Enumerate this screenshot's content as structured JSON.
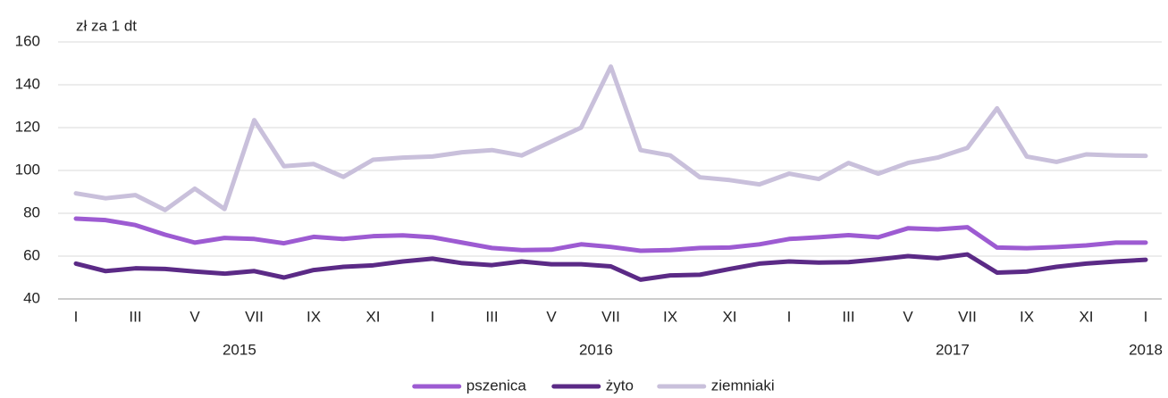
{
  "chart_data": {
    "type": "line",
    "y_label": "zł za 1 dt",
    "categories": [
      "I",
      null,
      "III",
      null,
      "V",
      null,
      "VII",
      null,
      "IX",
      null,
      "XI",
      null,
      "I",
      null,
      "III",
      null,
      "V",
      null,
      "VII",
      null,
      "IX",
      null,
      "XI",
      null,
      "I",
      null,
      "III",
      null,
      "V",
      null,
      "VII",
      null,
      "IX",
      null,
      "XI",
      null,
      "I"
    ],
    "years": [
      "2015",
      "2016",
      "2017",
      "2018"
    ],
    "series": [
      {
        "name": "pszenica",
        "color": "#9d5bd2",
        "values": [
          77.5,
          76.8,
          74.5,
          70,
          66.3,
          68.5,
          68,
          66,
          69,
          68,
          69.3,
          69.7,
          68.8,
          66.3,
          63.8,
          62.8,
          63,
          65.5,
          64.3,
          62.5,
          62.8,
          63.8,
          64,
          65.5,
          68,
          68.8,
          69.8,
          68.8,
          73,
          72.5,
          73.5,
          64,
          63.7,
          64.2,
          65,
          66.3,
          66.3
        ]
      },
      {
        "name": "żyto",
        "color": "#5b2a86",
        "values": [
          56.5,
          53,
          54.3,
          54,
          52.8,
          51.8,
          53,
          50,
          53.5,
          55,
          55.7,
          57.5,
          58.8,
          56.7,
          55.8,
          57.5,
          56.2,
          56.2,
          55.2,
          49,
          51,
          51.3,
          54,
          56.5,
          57.5,
          57,
          57.2,
          58.5,
          60,
          59,
          60.8,
          52.3,
          52.8,
          55,
          56.5,
          57.5,
          58.3
        ]
      },
      {
        "name": "ziemniaki",
        "color": "#c9c0db",
        "values": [
          89.3,
          87,
          88.5,
          81.5,
          91.5,
          82,
          123.5,
          102,
          103,
          97,
          105,
          106,
          106.5,
          108.5,
          109.5,
          107,
          113.5,
          120,
          148.5,
          109.5,
          107,
          96.8,
          95.5,
          93.5,
          98.5,
          96,
          103.5,
          98.5,
          103.5,
          106,
          110.5,
          129,
          106.5,
          104,
          107.5,
          107,
          106.8
        ]
      }
    ],
    "ylim": [
      40,
      160
    ],
    "yticks": [
      40,
      60,
      80,
      100,
      120,
      140,
      160
    ],
    "grid": true
  }
}
